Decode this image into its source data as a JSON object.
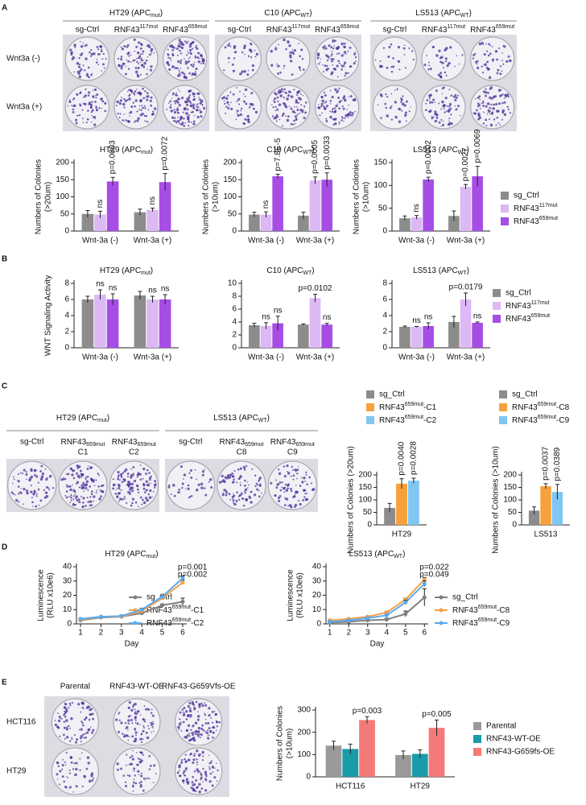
{
  "panel_letters": [
    "A",
    "B",
    "C",
    "D",
    "E"
  ],
  "photo_panels": [
    {
      "groups": [
        {
          "title": {
            "text": "HT29  (APC",
            "sub": "mut",
            "suffix": ")"
          },
          "color": "#e4202a",
          "columns": [
            "sg-Ctrl",
            {
              "text": "RNF43",
              "sup": "117mut"
            },
            {
              "text": "RNF43",
              "sup": "659mut"
            }
          ]
        },
        {
          "title": {
            "text": "C10 (APC",
            "sub": "WT",
            "suffix": ")"
          },
          "color": "#2e9e3e",
          "columns": [
            "sg-Ctrl",
            {
              "text": "RNF43",
              "sup": "117mut"
            },
            {
              "text": "RNF43",
              "sup": "659mut"
            }
          ]
        },
        {
          "title": {
            "text": "LS513 (APC",
            "sub": "WT",
            "suffix": ")"
          },
          "color": "#2e9e3e",
          "columns": [
            "sg-Ctrl",
            {
              "text": "RNF43",
              "sup": "117mut"
            },
            {
              "text": "RNF43",
              "sup": "659mut"
            }
          ]
        }
      ],
      "rows": [
        "Wnt3a (-)",
        "Wnt3a (+)"
      ]
    },
    {
      "groups": [
        {
          "title": {
            "text": "HT29  (APC",
            "sub": "mut",
            "suffix": ")"
          },
          "color": "#e4202a",
          "columns": [
            "sg-Ctrl",
            {
              "text": "RNF43",
              "sub": "659mut",
              "line2": "C1"
            },
            {
              "text": "RNF43",
              "sub": "659mut",
              "line2": "C2"
            }
          ]
        },
        {
          "title": {
            "text": "LS513 (APC",
            "sub": "WT",
            "suffix": ")"
          },
          "color": "#2e9e3e",
          "columns": [
            "sg-Ctrl",
            {
              "text": "RNF43",
              "sub": "659mut",
              "line2": "C8"
            },
            {
              "text": "RNF43",
              "sub": "659mut",
              "line2": "C9"
            }
          ]
        }
      ]
    },
    {
      "groups": [
        {
          "columns": [
            "Parental",
            "RNF43-WT-OE",
            "RNF43-G659Vfs-OE"
          ]
        }
      ],
      "rows": [
        "HCT116",
        "HT29"
      ]
    }
  ],
  "chart_data": [
    {
      "type": "bar",
      "title": {
        "text": "HT29  (APC",
        "sub": "mut",
        "suffix": ")"
      },
      "title_color": "#e4202a",
      "ylabel": [
        "Numbers of Colonies",
        "(>20um)"
      ],
      "categories": [
        "Wnt-3a (-)",
        "Wnt-3a (+)"
      ],
      "ylim": [
        0,
        200
      ],
      "yticks": [
        0,
        50,
        100,
        150,
        200
      ],
      "series": [
        {
          "color": "#8c8c8c",
          "values": [
            50,
            55
          ],
          "errors": [
            10,
            9
          ]
        },
        {
          "color": "#dcb8f5",
          "values": [
            48,
            62
          ],
          "errors": [
            10,
            5
          ],
          "labels": [
            "ns",
            "ns"
          ]
        },
        {
          "color": "#a64de6",
          "values": [
            145,
            143
          ],
          "errors": [
            12,
            25
          ],
          "labels": [
            "p=0.0003",
            "p=0.0072"
          ]
        }
      ]
    },
    {
      "type": "bar",
      "title": {
        "text": "C10 (APC",
        "sub": "WT",
        "suffix": ")"
      },
      "title_color": "#2e9e3e",
      "ylabel": [
        "Numbers of Colonies",
        "(>10um)"
      ],
      "categories": [
        "Wnt-3a (-)",
        "Wnt-3a (+)"
      ],
      "ylim": [
        0,
        200
      ],
      "yticks": [
        0,
        50,
        100,
        150,
        200
      ],
      "series": [
        {
          "color": "#8c8c8c",
          "values": [
            48,
            45
          ],
          "errors": [
            7,
            10
          ]
        },
        {
          "color": "#dcb8f5",
          "values": [
            48,
            148
          ],
          "errors": [
            8,
            10
          ],
          "labels": [
            "ns",
            "p=0.0005"
          ]
        },
        {
          "color": "#a64de6",
          "values": [
            160,
            150
          ],
          "errors": [
            6,
            20
          ],
          "labels": [
            "p=7.8E-5",
            "p=0.0033"
          ]
        }
      ]
    },
    {
      "type": "bar",
      "title": {
        "text": "LS513 (APC",
        "sub": "WT",
        "suffix": ")"
      },
      "title_color": "#2e9e3e",
      "ylabel": [
        "Numbers of Colonies",
        "(>10um)"
      ],
      "categories": [
        "Wnt-3a (-)",
        "Wnt-3a (+)"
      ],
      "ylim": [
        0,
        150
      ],
      "yticks": [
        0,
        50,
        100,
        150
      ],
      "legend": "right",
      "series": [
        {
          "name": "sg_Ctrl",
          "color": "#8c8c8c",
          "values": [
            28,
            33
          ],
          "errors": [
            5,
            11
          ]
        },
        {
          "name": {
            "text": "RNF43",
            "sup": "117mut"
          },
          "color": "#dcb8f5",
          "values": [
            30,
            97
          ],
          "errors": [
            4,
            5
          ],
          "labels": [
            "ns",
            "p=0.0027"
          ]
        },
        {
          "name": {
            "text": "RNF43",
            "sup": "659mut"
          },
          "color": "#a64de6",
          "values": [
            113,
            120
          ],
          "errors": [
            5,
            22
          ],
          "labels": [
            "p=0.0002",
            "p=0.0069"
          ]
        }
      ]
    },
    {
      "type": "bar",
      "title": {
        "text": "HT29  (APC",
        "sub": "mut",
        "suffix": ")"
      },
      "title_color": "#e4202a",
      "ylabel": [
        "WNT Signaling Activity"
      ],
      "categories": [
        "Wnt-3a (-)",
        "Wnt-3a (+)"
      ],
      "ylim": [
        0,
        8
      ],
      "yticks": [
        0,
        2,
        4,
        6,
        8
      ],
      "series": [
        {
          "color": "#8c8c8c",
          "values": [
            6.0,
            6.5
          ],
          "errors": [
            0.4,
            0.5
          ]
        },
        {
          "color": "#dcb8f5",
          "values": [
            6.6,
            6.0
          ],
          "errors": [
            0.6,
            0.4
          ],
          "labels": [
            "ns",
            "ns"
          ]
        },
        {
          "color": "#a64de6",
          "values": [
            6.0,
            6.0
          ],
          "errors": [
            0.7,
            0.6
          ],
          "labels": [
            "ns",
            "ns"
          ]
        }
      ]
    },
    {
      "type": "bar",
      "title": {
        "text": "C10 (APC",
        "sub": "WT",
        "suffix": ")"
      },
      "title_color": "#2e9e3e",
      "categories": [
        "Wnt-3a (-)",
        "Wnt-3a (+)"
      ],
      "ylim": [
        0,
        10
      ],
      "yticks": [
        0,
        2,
        4,
        6,
        8,
        10
      ],
      "series": [
        {
          "color": "#8c8c8c",
          "values": [
            3.5,
            3.6
          ],
          "errors": [
            0.3,
            0.1
          ]
        },
        {
          "color": "#dcb8f5",
          "values": [
            3.4,
            7.7
          ],
          "errors": [
            0.5,
            0.6
          ],
          "labels": [
            "ns",
            "p=0.0102"
          ]
        },
        {
          "color": "#a64de6",
          "values": [
            3.8,
            3.6
          ],
          "errors": [
            1.1,
            0.2
          ],
          "labels": [
            "ns",
            "ns"
          ]
        }
      ]
    },
    {
      "type": "bar",
      "title": {
        "text": "LS513 (APC",
        "sub": "WT",
        "suffix": ")"
      },
      "title_color": "#2e9e3e",
      "categories": [
        "Wnt-3a (-)",
        "Wnt-3a (+)"
      ],
      "ylim": [
        0,
        8
      ],
      "yticks": [
        0,
        2,
        4,
        6,
        8
      ],
      "legend": "right",
      "series": [
        {
          "name": "sg_Ctrl",
          "color": "#8c8c8c",
          "values": [
            2.6,
            3.2
          ],
          "errors": [
            0.1,
            0.7
          ]
        },
        {
          "name": {
            "text": "RNF43",
            "sup": "117mut"
          },
          "color": "#dcb8f5",
          "values": [
            2.6,
            6.0
          ],
          "errors": [
            0.05,
            0.8
          ],
          "labels": [
            "ns",
            "p=0.0179"
          ]
        },
        {
          "name": {
            "text": "RNF43",
            "sup": "659mut"
          },
          "color": "#a64de6",
          "values": [
            2.7,
            3.1
          ],
          "errors": [
            0.4,
            0.1
          ],
          "labels": [
            "ns",
            "ns"
          ]
        }
      ]
    },
    {
      "type": "bar",
      "ylabel": [
        "Numbers of Colonies (>20um)"
      ],
      "categories": [
        "HT29"
      ],
      "ylim": [
        0,
        200
      ],
      "yticks": [
        0,
        50,
        100,
        150,
        200
      ],
      "legend": "top",
      "series": [
        {
          "name": "sg_Ctrl",
          "color": "#8c8c8c",
          "values": [
            68
          ],
          "errors": [
            18
          ]
        },
        {
          "name": {
            "text": "RNF43",
            "sup": "659mut",
            "suffix": "-C1"
          },
          "color": "#f7a13b",
          "values": [
            165
          ],
          "errors": [
            20
          ],
          "labels": [
            "p=0.0040"
          ]
        },
        {
          "name": {
            "text": "RNF43",
            "sup": "659mut",
            "suffix": "-C2"
          },
          "color": "#80c6f2",
          "values": [
            177
          ],
          "errors": [
            10
          ],
          "labels": [
            "p=0.0028"
          ]
        }
      ]
    },
    {
      "type": "bar",
      "ylabel": [
        "Numbers of Colonies (>10um)"
      ],
      "categories": [
        "LS513"
      ],
      "ylim": [
        0,
        200
      ],
      "yticks": [
        0,
        50,
        100,
        150,
        200
      ],
      "legend": "top",
      "series": [
        {
          "name": "sg_Ctrl",
          "color": "#8c8c8c",
          "values": [
            57
          ],
          "errors": [
            15
          ]
        },
        {
          "name": {
            "text": "RNF43",
            "sup": "659mut",
            "suffix": "-C8"
          },
          "color": "#f7a13b",
          "values": [
            155
          ],
          "errors": [
            10
          ],
          "labels": [
            "p=0.0037"
          ]
        },
        {
          "name": {
            "text": "RNF43",
            "sup": "659mut",
            "suffix": "-C9"
          },
          "color": "#80c6f2",
          "values": [
            132
          ],
          "errors": [
            30
          ],
          "labels": [
            "p=0.0389"
          ]
        }
      ]
    },
    {
      "type": "line",
      "title": {
        "text": "HT29  (APC",
        "sub": "mut",
        "suffix": ")"
      },
      "title_color": "#e4202a",
      "ylabel": [
        "Luminescence",
        "(RLU x10e6)"
      ],
      "xlabel": "Day",
      "x": [
        1,
        2,
        3,
        4,
        5,
        6
      ],
      "xlim": [
        0.8,
        6.2
      ],
      "xticks": [
        1,
        2,
        3,
        4,
        5,
        6
      ],
      "ylim": [
        0,
        40
      ],
      "yticks": [
        0,
        10,
        20,
        30,
        40
      ],
      "legend": "right",
      "annotations": [
        "p=0.001",
        "p=0.002"
      ],
      "series": [
        {
          "name": "sg_Ctrl",
          "color": "#7f7f7f",
          "values": [
            2.5,
            4.5,
            5,
            7.5,
            13,
            15.5
          ],
          "errors": [
            0.3,
            0.5,
            0.5,
            0.5,
            1,
            2.5
          ]
        },
        {
          "name": {
            "text": "RNF43",
            "sup": "659mut",
            "suffix": "-C1"
          },
          "color": "#f5a04a",
          "values": [
            3,
            5,
            5,
            9,
            18,
            29
          ],
          "errors": [
            0.3,
            0.4,
            0.5,
            1,
            1,
            1.5
          ]
        },
        {
          "name": {
            "text": "RNF43",
            "sup": "659mut",
            "suffix": "-C2"
          },
          "color": "#5aabf0",
          "values": [
            3.5,
            5,
            5.5,
            10,
            19,
            32
          ],
          "errors": [
            0.3,
            0.4,
            0.5,
            1,
            1,
            1.5
          ]
        }
      ]
    },
    {
      "type": "line",
      "title": {
        "text": "LS513 (APC",
        "sub": "WT",
        "suffix": ")"
      },
      "title_color": "#2e9e3e",
      "ylabel": [
        "Luminescence",
        "(RLU x10e6)"
      ],
      "xlabel": "Day",
      "x": [
        1,
        2,
        3,
        4,
        5,
        6
      ],
      "xlim": [
        0.8,
        6.2
      ],
      "xticks": [
        1,
        2,
        3,
        4,
        5,
        6
      ],
      "ylim": [
        0,
        40
      ],
      "yticks": [
        0,
        10,
        20,
        30,
        40
      ],
      "legend": "right",
      "annotations": [
        "p=0.022",
        "p=0.049"
      ],
      "series": [
        {
          "name": "sg_Ctrl",
          "color": "#7f7f7f",
          "values": [
            1,
            1.5,
            2.5,
            3,
            7,
            18.5
          ],
          "errors": [
            0.3,
            0.3,
            0.5,
            1,
            2,
            6
          ]
        },
        {
          "name": {
            "text": "RNF43",
            "sup": "659mut",
            "suffix": "-C8"
          },
          "color": "#f5a04a",
          "values": [
            2.5,
            3.5,
            5,
            8,
            17,
            31
          ],
          "errors": [
            0.3,
            0.4,
            0.5,
            0.8,
            1,
            1.5
          ]
        },
        {
          "name": {
            "text": "RNF43",
            "sup": "659mut",
            "suffix": "-C9"
          },
          "color": "#5aabf0",
          "values": [
            1.5,
            2.5,
            4,
            6,
            15,
            28
          ],
          "errors": [
            0.3,
            0.4,
            0.5,
            0.8,
            1.5,
            2
          ]
        }
      ]
    },
    {
      "type": "bar",
      "ylabel": [
        "Numbers of Colonies",
        "(>10um)"
      ],
      "categories": [
        "HCT116",
        "HT29"
      ],
      "ylim": [
        0,
        300
      ],
      "yticks": [
        0,
        100,
        200,
        300
      ],
      "legend": "right",
      "series": [
        {
          "name": "Parental",
          "color": "#9a9a9a",
          "values": [
            140,
            98
          ],
          "errors": [
            20,
            18
          ]
        },
        {
          "name": "RNF43-WT-OE",
          "color": "#1b9aa8",
          "values": [
            125,
            103
          ],
          "errors": [
            22,
            18
          ]
        },
        {
          "name": "RNF43-G659fs-OE",
          "color": "#f47a7a",
          "values": [
            255,
            220
          ],
          "errors": [
            15,
            35
          ],
          "labels": [
            "p=0.003",
            "p=0.005"
          ]
        }
      ]
    }
  ]
}
